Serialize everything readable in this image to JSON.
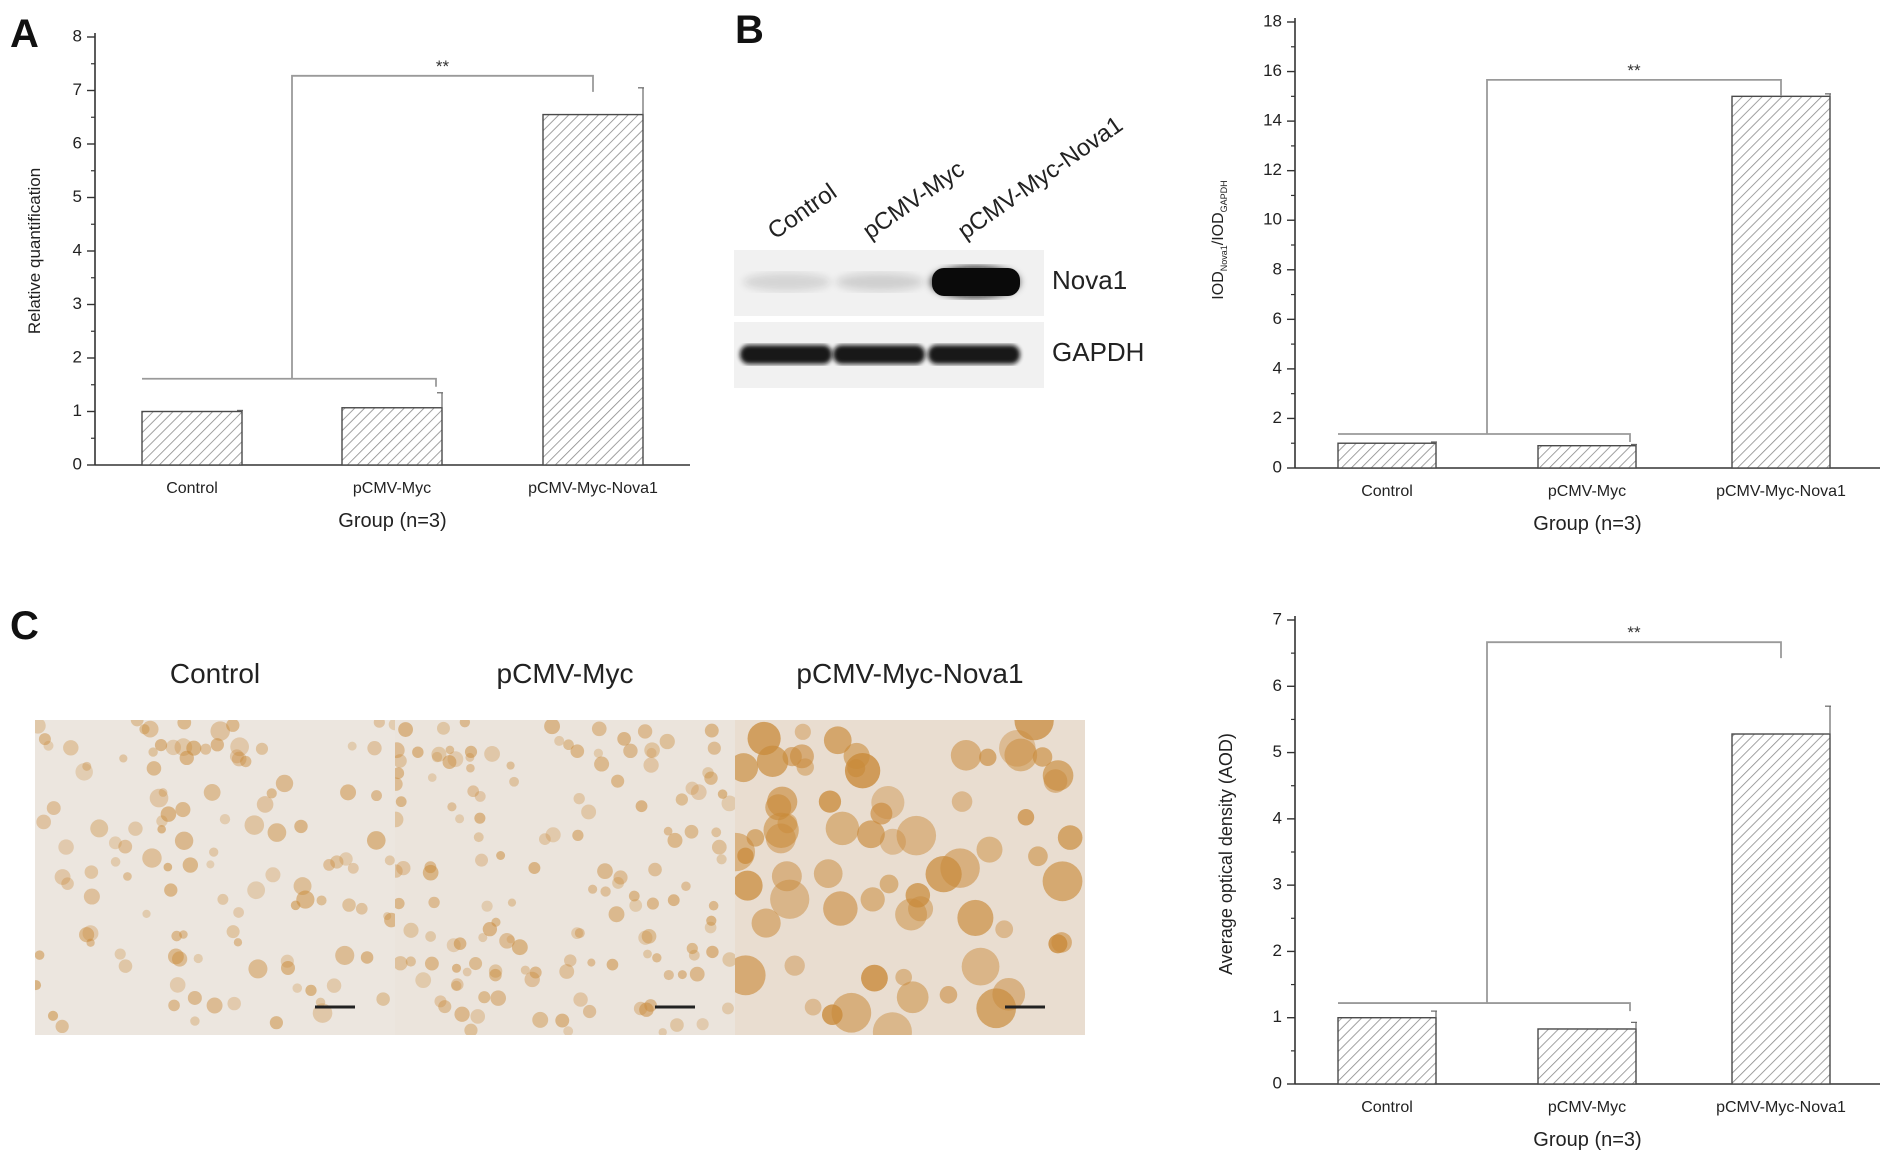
{
  "panel_letters": [
    "A",
    "B",
    "C"
  ],
  "blot": {
    "lanes": [
      "Control",
      "pCMV-Myc",
      "pCMV-Myc-Nova1"
    ],
    "rows": [
      "Nova1",
      "GAPDH"
    ],
    "nova1_intensity": [
      0.12,
      0.14,
      1.0
    ],
    "gapdh_intensity": [
      0.95,
      0.95,
      0.95
    ]
  },
  "micrographs": {
    "labels": [
      "Control",
      "pCMV-Myc",
      "pCMV-Myc-Nova1"
    ],
    "stain_color": "#c98a3a"
  },
  "colors": {
    "bar_fill": "#ffffff",
    "hatch": "#8a8a8a",
    "axis": "#333333",
    "bracket": "#9a9a9a"
  },
  "chart_data": [
    {
      "type": "bar",
      "panel": "A",
      "categories": [
        "Control",
        "pCMV-Myc",
        "pCMV-Myc-Nova1"
      ],
      "values": [
        1.0,
        1.07,
        6.55
      ],
      "errors": [
        0.02,
        0.28,
        0.5
      ],
      "ylabel": "Relative quantification",
      "xlabel": "Group (n=3)",
      "ylim": [
        0,
        8
      ],
      "yticks": [
        "0",
        "1",
        "2",
        "3",
        "4",
        "5",
        "6",
        "7",
        "8"
      ],
      "significance": "**"
    },
    {
      "type": "bar",
      "panel": "B",
      "categories": [
        "Control",
        "pCMV-Myc",
        "pCMV-Myc-Nova1"
      ],
      "values": [
        1.0,
        0.9,
        15.0
      ],
      "errors": [
        0.05,
        0.05,
        0.1
      ],
      "ylabel_main": "IOD",
      "ylabel_sub1": "Nova1",
      "ylabel_mid": "/IOD",
      "ylabel_sub2": "GAPDH",
      "xlabel": "Group (n=3)",
      "ylim": [
        0,
        18
      ],
      "yticks": [
        "0",
        "2",
        "4",
        "6",
        "8",
        "10",
        "12",
        "14",
        "16",
        "18"
      ],
      "significance": "**"
    },
    {
      "type": "bar",
      "panel": "C",
      "categories": [
        "Control",
        "pCMV-Myc",
        "pCMV-Myc-Nova1"
      ],
      "values": [
        1.0,
        0.83,
        5.28
      ],
      "errors": [
        0.1,
        0.1,
        0.42
      ],
      "ylabel": "Average optical density (AOD)",
      "xlabel": "Group (n=3)",
      "ylim": [
        0,
        7
      ],
      "yticks": [
        "0",
        "1",
        "2",
        "3",
        "4",
        "5",
        "6",
        "7"
      ],
      "significance": "**"
    }
  ]
}
